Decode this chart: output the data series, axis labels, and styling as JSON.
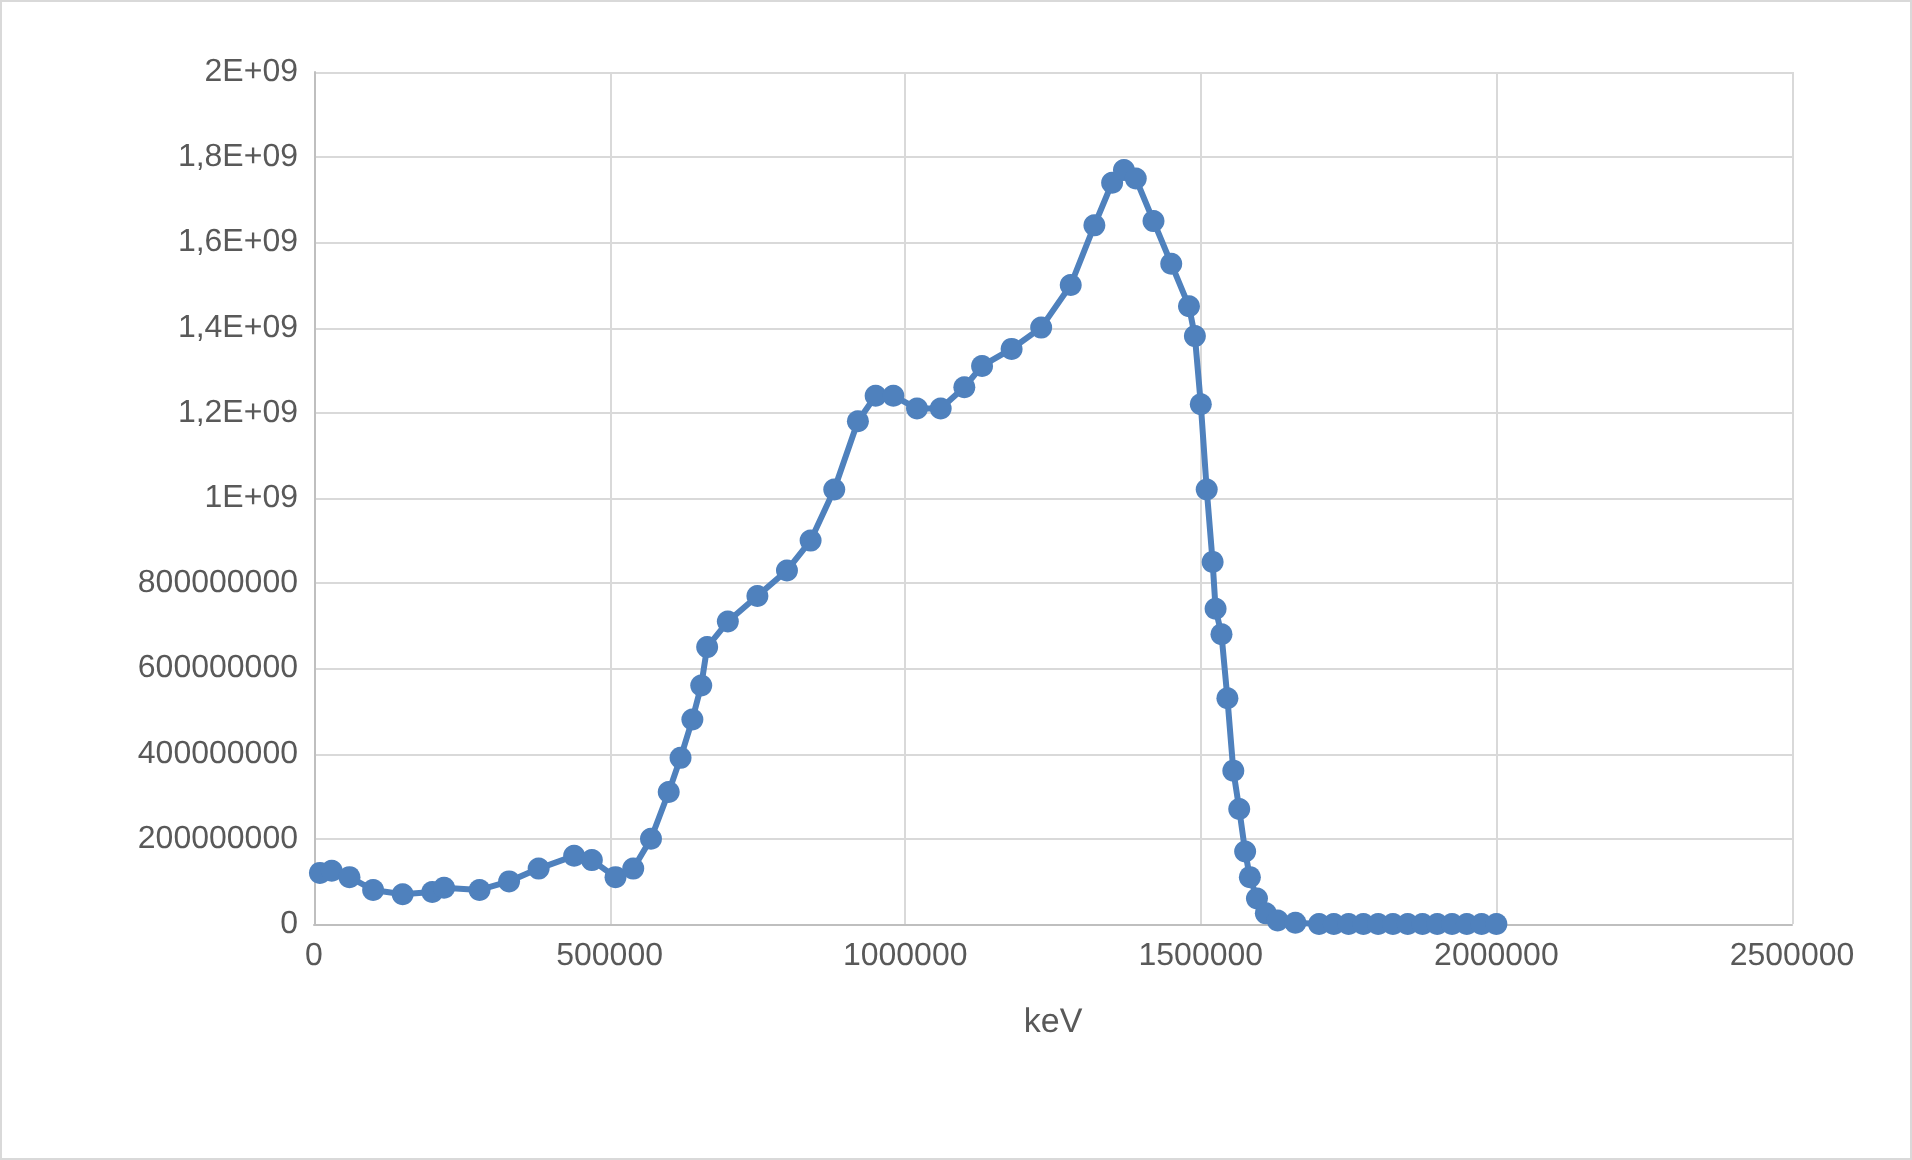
{
  "chart_data": {
    "type": "line",
    "xlabel": "keV",
    "marker": "circle",
    "line_style": "solid",
    "grid": true,
    "xlim": [
      0,
      2500000
    ],
    "xticks": [
      0,
      500000,
      1000000,
      1500000,
      2000000,
      2500000
    ],
    "ylim": [
      0,
      2000000000
    ],
    "yticks": [
      0,
      200000000,
      400000000,
      600000000,
      800000000,
      {
        "value": 1000000000,
        "label": "1E+09"
      },
      {
        "value": 1200000000,
        "label": "1,2E+09"
      },
      {
        "value": 1400000000,
        "label": "1,4E+09"
      },
      {
        "value": 1600000000,
        "label": "1,6E+09"
      },
      {
        "value": 1800000000,
        "label": "1,8E+09"
      },
      {
        "value": 2000000000,
        "label": "2E+09"
      }
    ],
    "series": [
      {
        "color": "#4f81bd",
        "x": [
          10000,
          30000,
          60000,
          100000,
          150000,
          200000,
          220000,
          280000,
          330000,
          380000,
          440000,
          470000,
          510000,
          540000,
          570000,
          600000,
          620000,
          640000,
          655000,
          665000,
          700000,
          750000,
          800000,
          840000,
          880000,
          920000,
          950000,
          980000,
          1020000,
          1060000,
          1100000,
          1130000,
          1180000,
          1230000,
          1280000,
          1320000,
          1350000,
          1370000,
          1390000,
          1420000,
          1450000,
          1480000,
          1490000,
          1500000,
          1510000,
          1520000,
          1525000,
          1535000,
          1545000,
          1555000,
          1565000,
          1575000,
          1583000,
          1595000,
          1610000,
          1630000,
          1660000,
          1700000,
          1725000,
          1750000,
          1775000,
          1800000,
          1825000,
          1850000,
          1875000,
          1900000,
          1925000,
          1950000,
          1975000,
          2000000
        ],
        "values": [
          120000000,
          125000000,
          110000000,
          80000000,
          70000000,
          75000000,
          85000000,
          80000000,
          100000000,
          130000000,
          160000000,
          150000000,
          110000000,
          130000000,
          200000000,
          310000000,
          390000000,
          480000000,
          560000000,
          650000000,
          710000000,
          770000000,
          830000000,
          900000000,
          1020000000,
          1180000000,
          1240000000,
          1240000000,
          1210000000,
          1210000000,
          1260000000,
          1310000000,
          1350000000,
          1400000000,
          1500000000,
          1640000000,
          1740000000,
          1770000000,
          1750000000,
          1650000000,
          1550000000,
          1450000000,
          1380000000,
          1220000000,
          1020000000,
          850000000,
          740000000,
          680000000,
          530000000,
          360000000,
          270000000,
          170000000,
          110000000,
          60000000,
          25000000,
          8000000,
          3000000,
          0,
          0,
          0,
          0,
          0,
          0,
          0,
          0,
          0,
          0,
          0,
          0,
          0
        ]
      }
    ]
  }
}
